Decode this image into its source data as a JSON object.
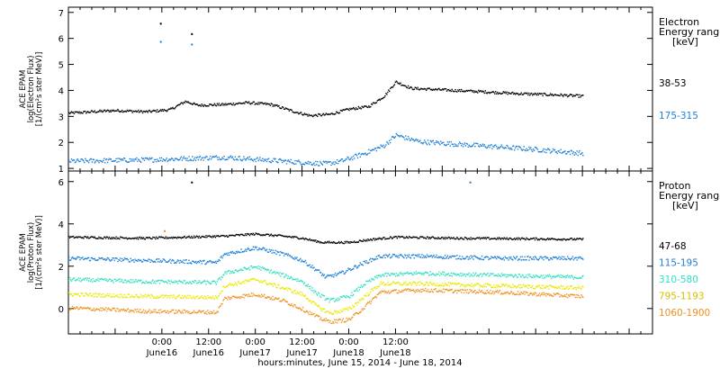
{
  "chart_data": [
    {
      "type": "scatter",
      "ylabel_lines": [
        "ACE EPAM",
        "log(Electron Flux)",
        "[1/(cm²s ster MeV)]"
      ],
      "ylim": [
        0.9,
        7.2
      ],
      "yticks": [
        1,
        2,
        3,
        4,
        5,
        6,
        7
      ],
      "legend_title_lines": [
        "Electron",
        "Energy range",
        "[keV]"
      ],
      "series": [
        {
          "name": "38-53",
          "color": "#000000",
          "trend": [
            [
              0,
              3.15
            ],
            [
              12,
              3.25
            ],
            [
              20,
              3.2
            ],
            [
              26,
              3.28
            ],
            [
              30,
              3.6
            ],
            [
              33,
              3.45
            ],
            [
              40,
              3.48
            ],
            [
              46,
              3.55
            ],
            [
              52,
              3.48
            ],
            [
              58,
              3.2
            ],
            [
              62,
              3.05
            ],
            [
              67,
              3.1
            ],
            [
              72,
              3.3
            ],
            [
              77,
              3.4
            ],
            [
              81,
              3.8
            ],
            [
              84,
              4.35
            ],
            [
              88,
              4.1
            ],
            [
              95,
              4.05
            ],
            [
              105,
              3.98
            ],
            [
              115,
              3.9
            ],
            [
              125,
              3.85
            ],
            [
              132,
              3.8
            ]
          ],
          "outliers": [
            [
              23.5,
              6.6
            ],
            [
              31.5,
              6.2
            ]
          ]
        },
        {
          "name": "175-315",
          "color": "#1e7fd6",
          "trend": [
            [
              0,
              1.3
            ],
            [
              20,
              1.35
            ],
            [
              30,
              1.4
            ],
            [
              40,
              1.45
            ],
            [
              50,
              1.35
            ],
            [
              60,
              1.25
            ],
            [
              66,
              1.2
            ],
            [
              70,
              1.3
            ],
            [
              76,
              1.6
            ],
            [
              81,
              1.9
            ],
            [
              84,
              2.3
            ],
            [
              90,
              2.05
            ],
            [
              100,
              1.95
            ],
            [
              110,
              1.85
            ],
            [
              120,
              1.75
            ],
            [
              132,
              1.6
            ]
          ],
          "outliers": [
            [
              23.5,
              5.9
            ],
            [
              31.5,
              5.8
            ]
          ]
        }
      ]
    },
    {
      "type": "scatter",
      "ylabel_lines": [
        "ACE EPAM",
        "log(Proton Flux)",
        "[1/(cm²s ster MeV)]"
      ],
      "ylim": [
        -1.2,
        6.5
      ],
      "yticks": [
        0,
        2,
        4,
        6
      ],
      "legend_title_lines": [
        "Proton",
        "Energy range",
        "[keV]"
      ],
      "series": [
        {
          "name": "47-68",
          "color": "#000000",
          "trend": [
            [
              0,
              3.4
            ],
            [
              20,
              3.35
            ],
            [
              40,
              3.45
            ],
            [
              48,
              3.55
            ],
            [
              55,
              3.45
            ],
            [
              60,
              3.35
            ],
            [
              65,
              3.15
            ],
            [
              72,
              3.15
            ],
            [
              78,
              3.3
            ],
            [
              84,
              3.4
            ],
            [
              100,
              3.35
            ],
            [
              132,
              3.3
            ]
          ],
          "outliers": [
            [
              31.5,
              6.0
            ]
          ]
        },
        {
          "name": "115-195",
          "color": "#1e7fd6",
          "trend": [
            [
              0,
              2.4
            ],
            [
              20,
              2.3
            ],
            [
              38,
              2.2
            ],
            [
              40,
              2.6
            ],
            [
              48,
              2.9
            ],
            [
              55,
              2.6
            ],
            [
              60,
              2.3
            ],
            [
              64,
              1.8
            ],
            [
              66,
              1.5
            ],
            [
              70,
              1.7
            ],
            [
              76,
              2.2
            ],
            [
              80,
              2.5
            ],
            [
              90,
              2.5
            ],
            [
              110,
              2.4
            ],
            [
              132,
              2.4
            ]
          ],
          "outliers": [
            [
              103,
              6.0
            ]
          ]
        },
        {
          "name": "310-580",
          "color": "#2ee0c0",
          "trend": [
            [
              0,
              1.4
            ],
            [
              20,
              1.3
            ],
            [
              38,
              1.25
            ],
            [
              40,
              1.7
            ],
            [
              48,
              2.0
            ],
            [
              55,
              1.6
            ],
            [
              60,
              1.3
            ],
            [
              64,
              0.7
            ],
            [
              67,
              0.4
            ],
            [
              72,
              0.6
            ],
            [
              76,
              1.2
            ],
            [
              80,
              1.6
            ],
            [
              90,
              1.7
            ],
            [
              110,
              1.6
            ],
            [
              132,
              1.5
            ]
          ],
          "outliers": []
        },
        {
          "name": "795-1193",
          "color": "#e8e800",
          "trend": [
            [
              0,
              0.7
            ],
            [
              20,
              0.6
            ],
            [
              38,
              0.55
            ],
            [
              40,
              1.1
            ],
            [
              48,
              1.4
            ],
            [
              55,
              1.0
            ],
            [
              60,
              0.7
            ],
            [
              64,
              0.1
            ],
            [
              67,
              -0.2
            ],
            [
              72,
              0.0
            ],
            [
              76,
              0.6
            ],
            [
              80,
              1.2
            ],
            [
              90,
              1.2
            ],
            [
              110,
              1.1
            ],
            [
              132,
              1.0
            ]
          ],
          "outliers": []
        },
        {
          "name": "1060-1900",
          "color": "#f0901e",
          "trend": [
            [
              0,
              0.05
            ],
            [
              20,
              -0.1
            ],
            [
              38,
              -0.15
            ],
            [
              40,
              0.5
            ],
            [
              48,
              0.7
            ],
            [
              55,
              0.4
            ],
            [
              60,
              0.0
            ],
            [
              64,
              -0.4
            ],
            [
              67,
              -0.6
            ],
            [
              72,
              -0.5
            ],
            [
              76,
              0.1
            ],
            [
              80,
              0.8
            ],
            [
              90,
              0.9
            ],
            [
              110,
              0.8
            ],
            [
              132,
              0.6
            ]
          ],
          "outliers": [
            [
              24.5,
              3.7
            ]
          ]
        }
      ]
    }
  ],
  "x_axis": {
    "xlim_hours": [
      0,
      150
    ],
    "ticks": [
      {
        "hour": 0,
        "time": "",
        "day": ""
      },
      {
        "hour": 24,
        "time": "0:00",
        "day": "June16"
      },
      {
        "hour": 36,
        "time": "12:00",
        "day": "June16"
      },
      {
        "hour": 48,
        "time": "0:00",
        "day": "June17"
      },
      {
        "hour": 60,
        "time": "12:00",
        "day": "June17"
      },
      {
        "hour": 72,
        "time": "0:00",
        "day": "June18"
      },
      {
        "hour": 84,
        "time": "12:00",
        "day": "June18"
      }
    ],
    "title": "hours:minutes, June 15, 2014 - June 18, 2014"
  }
}
